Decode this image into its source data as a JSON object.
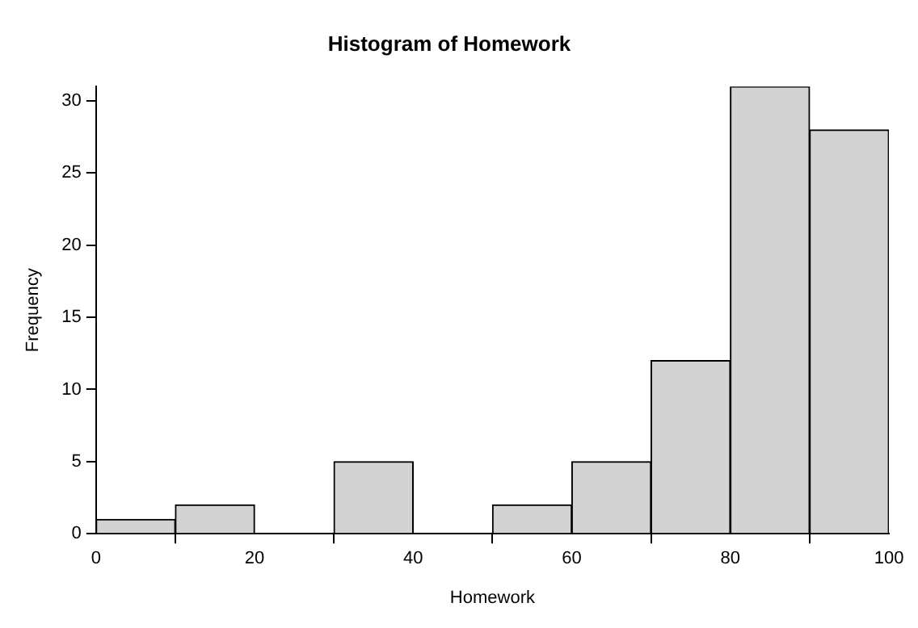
{
  "chart_data": {
    "type": "histogram",
    "title": "Histogram of Homework",
    "xlabel": "Homework",
    "ylabel": "Frequency",
    "bins": [
      0,
      10,
      20,
      30,
      40,
      50,
      60,
      70,
      80,
      90,
      100
    ],
    "values": [
      1,
      2,
      0,
      5,
      0,
      2,
      5,
      12,
      31,
      28
    ],
    "color": "#d3d3d3",
    "xlim": [
      0,
      100
    ],
    "xticks": [
      0,
      20,
      40,
      60,
      80,
      100
    ],
    "ylim": [
      0,
      31
    ],
    "yticks": [
      0,
      5,
      10,
      15,
      20,
      25,
      30
    ],
    "grid": false,
    "legend": false
  }
}
